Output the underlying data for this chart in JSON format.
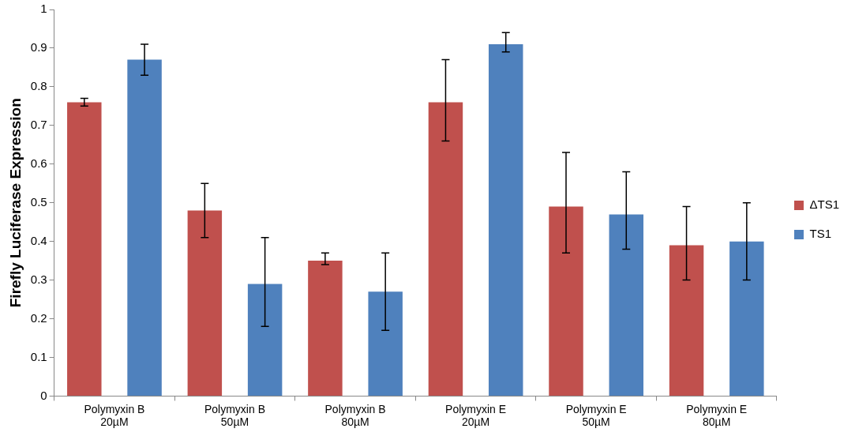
{
  "chart_data": {
    "type": "bar",
    "ylabel": "Firefly Luciferase Expression",
    "categories": [
      "Polymyxin B\n20µM",
      "Polymyxin B\n50µM",
      "Polymyxin B\n80µM",
      "Polymyxin E\n20µM",
      "Polymyxin E\n50µM",
      "Polymyxin E\n80µM"
    ],
    "series": [
      {
        "name": "ΔTS1",
        "color": "#c0504d",
        "values": [
          0.76,
          0.48,
          0.35,
          0.76,
          0.49,
          0.39
        ],
        "errors": [
          [
            0.75,
            0.77
          ],
          [
            0.41,
            0.55
          ],
          [
            0.34,
            0.37
          ],
          [
            0.66,
            0.87
          ],
          [
            0.37,
            0.63
          ],
          [
            0.3,
            0.49
          ]
        ]
      },
      {
        "name": "TS1",
        "color": "#4f81bd",
        "values": [
          0.87,
          0.29,
          0.27,
          0.91,
          0.47,
          0.4
        ],
        "errors": [
          [
            0.83,
            0.91
          ],
          [
            0.18,
            0.41
          ],
          [
            0.17,
            0.37
          ],
          [
            0.89,
            0.94
          ],
          [
            0.38,
            0.58
          ],
          [
            0.3,
            0.5
          ]
        ]
      }
    ],
    "ylim": [
      0,
      1
    ],
    "yticks": [
      0,
      0.1,
      0.2,
      0.3,
      0.4,
      0.5,
      0.6,
      0.7,
      0.8,
      0.9,
      1
    ],
    "grid": false,
    "legend": "right"
  }
}
